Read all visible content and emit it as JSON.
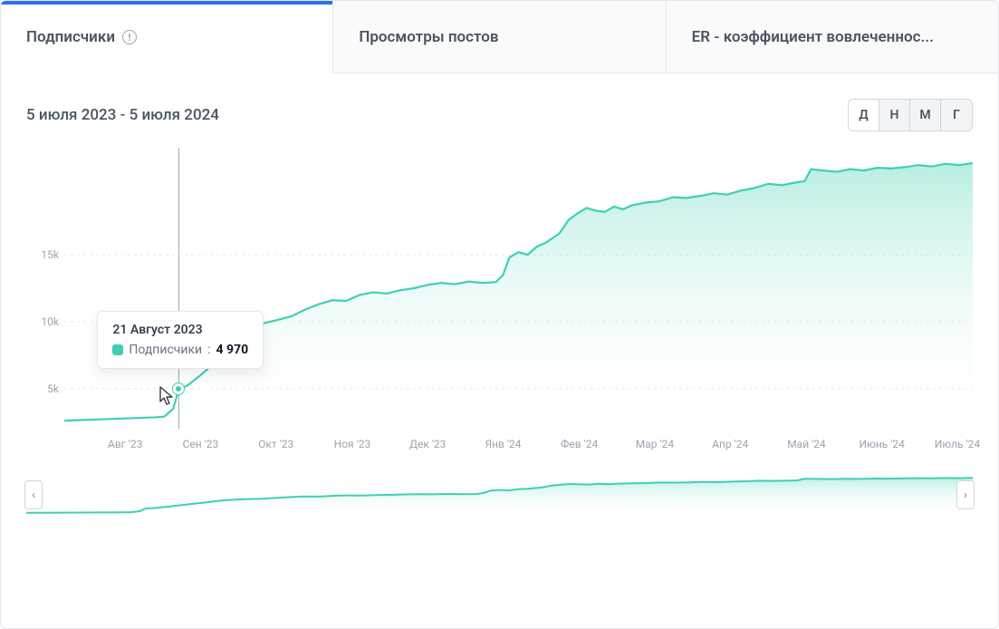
{
  "tabs": [
    {
      "label": "Подписчики",
      "active": true,
      "has_info": true
    },
    {
      "label": "Просмотры постов",
      "active": false,
      "has_info": false
    },
    {
      "label": "ER - коэффициент вовлеченнос...",
      "active": false,
      "has_info": false
    }
  ],
  "date_range": "5 июля 2023 - 5 июля 2024",
  "granularity": {
    "options": [
      "Д",
      "Н",
      "М",
      "Г"
    ],
    "active_index": 0
  },
  "chart": {
    "type": "area",
    "series_label": "Подписчики",
    "line_color": "#3fd0b4",
    "area_top_color": "#7ee0cc",
    "area_bottom_color": "#ffffff",
    "area_opacity": 0.55,
    "grid_color": "#e5e7eb",
    "hover_line_color": "#9ca3af",
    "ylim": [
      2000,
      23000
    ],
    "y_ticks": [
      {
        "value": 5000,
        "label": "5k"
      },
      {
        "value": 10000,
        "label": "10k"
      },
      {
        "value": 15000,
        "label": "15k"
      }
    ],
    "x_ticks": [
      {
        "t": 0.067,
        "label": "Авг '23"
      },
      {
        "t": 0.15,
        "label": "Сен '23"
      },
      {
        "t": 0.233,
        "label": "Окт '23"
      },
      {
        "t": 0.317,
        "label": "Ноя '23"
      },
      {
        "t": 0.4,
        "label": "Дек '23"
      },
      {
        "t": 0.483,
        "label": "Янв '24"
      },
      {
        "t": 0.567,
        "label": "Фев '24"
      },
      {
        "t": 0.65,
        "label": "Мар '24"
      },
      {
        "t": 0.733,
        "label": "Апр '24"
      },
      {
        "t": 0.817,
        "label": "Май '24"
      },
      {
        "t": 0.9,
        "label": "Июнь '24"
      },
      {
        "t": 0.983,
        "label": "Июль '24"
      }
    ],
    "data": [
      {
        "t": 0.0,
        "v": 2600
      },
      {
        "t": 0.02,
        "v": 2650
      },
      {
        "t": 0.04,
        "v": 2700
      },
      {
        "t": 0.06,
        "v": 2750
      },
      {
        "t": 0.08,
        "v": 2800
      },
      {
        "t": 0.1,
        "v": 2850
      },
      {
        "t": 0.11,
        "v": 2900
      },
      {
        "t": 0.12,
        "v": 3500
      },
      {
        "t": 0.126,
        "v": 4970
      },
      {
        "t": 0.135,
        "v": 5200
      },
      {
        "t": 0.15,
        "v": 6000
      },
      {
        "t": 0.16,
        "v": 6600
      },
      {
        "t": 0.175,
        "v": 7500
      },
      {
        "t": 0.19,
        "v": 8400
      },
      {
        "t": 0.205,
        "v": 9300
      },
      {
        "t": 0.22,
        "v": 9900
      },
      {
        "t": 0.233,
        "v": 10100
      },
      {
        "t": 0.25,
        "v": 10400
      },
      {
        "t": 0.265,
        "v": 10900
      },
      {
        "t": 0.28,
        "v": 11300
      },
      {
        "t": 0.295,
        "v": 11600
      },
      {
        "t": 0.31,
        "v": 11550
      },
      {
        "t": 0.325,
        "v": 12000
      },
      {
        "t": 0.34,
        "v": 12200
      },
      {
        "t": 0.355,
        "v": 12100
      },
      {
        "t": 0.37,
        "v": 12350
      },
      {
        "t": 0.385,
        "v": 12500
      },
      {
        "t": 0.4,
        "v": 12750
      },
      {
        "t": 0.415,
        "v": 12900
      },
      {
        "t": 0.43,
        "v": 12800
      },
      {
        "t": 0.445,
        "v": 13000
      },
      {
        "t": 0.46,
        "v": 12900
      },
      {
        "t": 0.475,
        "v": 12950
      },
      {
        "t": 0.483,
        "v": 13500
      },
      {
        "t": 0.49,
        "v": 14800
      },
      {
        "t": 0.5,
        "v": 15200
      },
      {
        "t": 0.51,
        "v": 15000
      },
      {
        "t": 0.52,
        "v": 15600
      },
      {
        "t": 0.53,
        "v": 15900
      },
      {
        "t": 0.545,
        "v": 16600
      },
      {
        "t": 0.555,
        "v": 17600
      },
      {
        "t": 0.565,
        "v": 18100
      },
      {
        "t": 0.575,
        "v": 18500
      },
      {
        "t": 0.585,
        "v": 18300
      },
      {
        "t": 0.595,
        "v": 18200
      },
      {
        "t": 0.605,
        "v": 18600
      },
      {
        "t": 0.615,
        "v": 18400
      },
      {
        "t": 0.625,
        "v": 18700
      },
      {
        "t": 0.64,
        "v": 18900
      },
      {
        "t": 0.655,
        "v": 19000
      },
      {
        "t": 0.67,
        "v": 19300
      },
      {
        "t": 0.685,
        "v": 19250
      },
      {
        "t": 0.7,
        "v": 19400
      },
      {
        "t": 0.715,
        "v": 19600
      },
      {
        "t": 0.73,
        "v": 19500
      },
      {
        "t": 0.745,
        "v": 19800
      },
      {
        "t": 0.76,
        "v": 20000
      },
      {
        "t": 0.775,
        "v": 20300
      },
      {
        "t": 0.79,
        "v": 20200
      },
      {
        "t": 0.805,
        "v": 20400
      },
      {
        "t": 0.815,
        "v": 20500
      },
      {
        "t": 0.822,
        "v": 21400
      },
      {
        "t": 0.835,
        "v": 21300
      },
      {
        "t": 0.85,
        "v": 21200
      },
      {
        "t": 0.865,
        "v": 21400
      },
      {
        "t": 0.88,
        "v": 21300
      },
      {
        "t": 0.895,
        "v": 21500
      },
      {
        "t": 0.91,
        "v": 21450
      },
      {
        "t": 0.925,
        "v": 21550
      },
      {
        "t": 0.94,
        "v": 21700
      },
      {
        "t": 0.955,
        "v": 21600
      },
      {
        "t": 0.97,
        "v": 21800
      },
      {
        "t": 0.985,
        "v": 21700
      },
      {
        "t": 1.0,
        "v": 21850
      }
    ],
    "hover": {
      "t": 0.126,
      "value": 4970,
      "value_display": "4 970",
      "date_label": "21 Август 2023"
    }
  },
  "overview": {
    "line_color": "#3fd0b4",
    "area_top_color": "#b9efe3",
    "area_bottom_color": "#ffffff",
    "nav_left": "‹",
    "nav_right": "›"
  }
}
